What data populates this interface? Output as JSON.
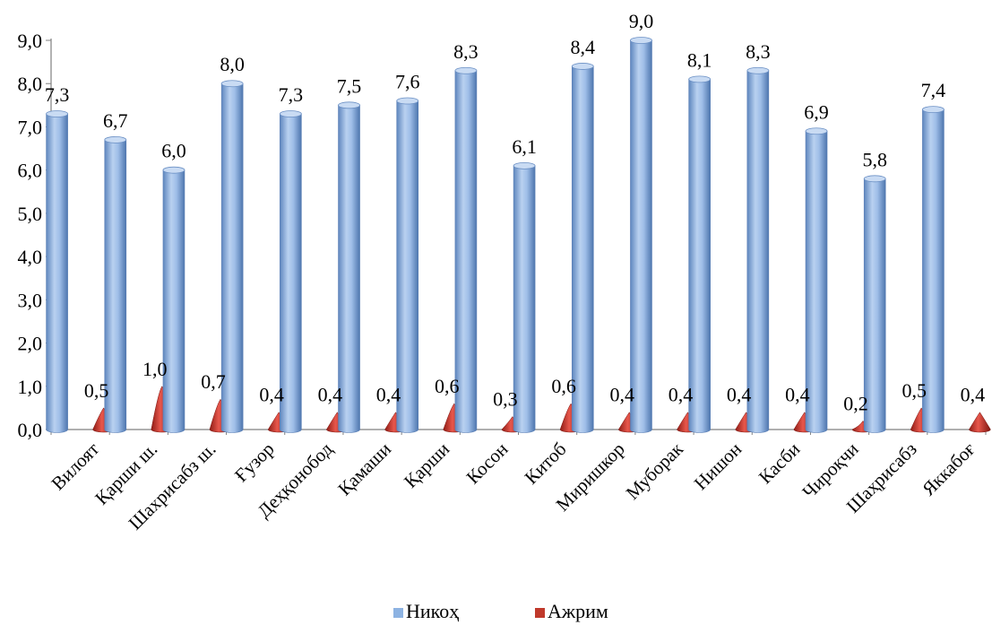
{
  "chart_data": {
    "type": "bar",
    "categories": [
      "Вилоят",
      "Қарши ш.",
      "Шахрисабз ш.",
      "Ғузор",
      "Деҳқонобод",
      "Қамаши",
      "Қарши",
      "Косон",
      "Китоб",
      "Миришкор",
      "Муборак",
      "Нишон",
      "Касби",
      "Чироқчи",
      "Шаҳрисабз",
      "Яккабоғ"
    ],
    "series": [
      {
        "name": "Никоҳ",
        "color": "#8DB3E2",
        "values": [
          7.3,
          6.7,
          6.0,
          8.0,
          7.3,
          7.5,
          7.6,
          8.3,
          6.1,
          8.4,
          9.0,
          8.1,
          8.3,
          6.9,
          5.8,
          7.4
        ],
        "labels": [
          "7,3",
          "6,7",
          "6,0",
          "8,0",
          "7,3",
          "7,5",
          "7,6",
          "8,3",
          "6,1",
          "8,4",
          "9,0",
          "8,1",
          "8,3",
          "6,9",
          "5,8",
          "7,4"
        ]
      },
      {
        "name": "Ажрим",
        "color": "#C0392B",
        "values": [
          0.5,
          1.0,
          0.7,
          0.4,
          0.4,
          0.4,
          0.6,
          0.3,
          0.6,
          0.4,
          0.4,
          0.4,
          0.4,
          0.2,
          0.5,
          0.4
        ],
        "labels": [
          "0,5",
          "1,0",
          "0,7",
          "0,4",
          "0,4",
          "0,4",
          "0,6",
          "0,3",
          "0,6",
          "0,4",
          "0,4",
          "0,4",
          "0,4",
          "0,2",
          "0,5",
          "0,4"
        ]
      }
    ],
    "ylim": [
      0,
      9
    ],
    "yticks": [
      "0,0",
      "1,0",
      "2,0",
      "3,0",
      "4,0",
      "5,0",
      "6,0",
      "7,0",
      "8,0",
      "9,0"
    ],
    "title": "",
    "xlabel": "",
    "ylabel": "",
    "grid": false,
    "legend": "bottom"
  }
}
